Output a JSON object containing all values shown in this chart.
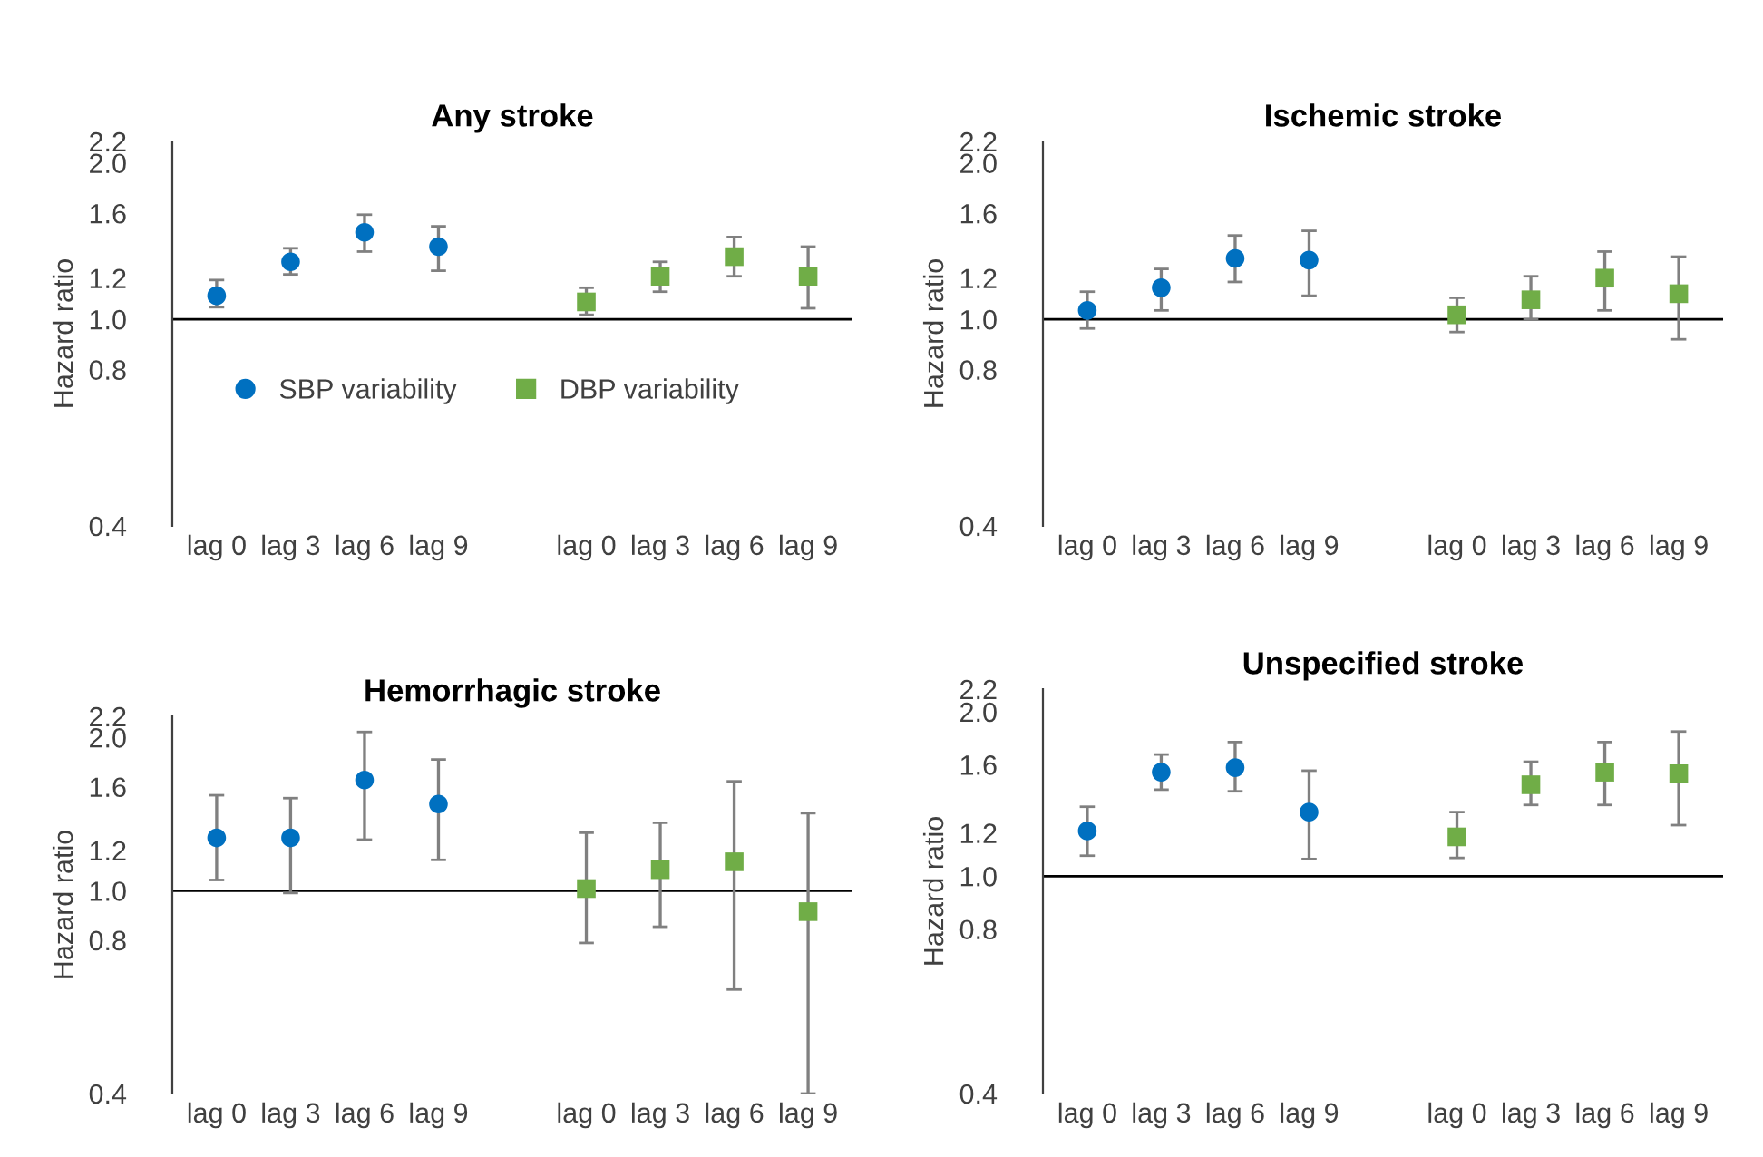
{
  "chart_data": [
    {
      "type": "scatter",
      "title": "Any stroke",
      "ylabel": "Hazard ratio",
      "log": true,
      "ylim": [
        0.4,
        2.2
      ],
      "yticks": [
        {
          "value": 0.4,
          "label": "0.4"
        },
        {
          "value": 0.8,
          "label": "0.8"
        },
        {
          "value": 1.0,
          "label": "1.0"
        },
        {
          "value": 1.2,
          "label": "1.2"
        },
        {
          "value": 1.6,
          "label": "1.6"
        },
        {
          "value": 2.0,
          "label": "2.0"
        },
        {
          "value": 2.2,
          "label": "2.2"
        }
      ],
      "categories": [
        "lag 0",
        "lag 3",
        "lag 6",
        "lag 9",
        null,
        "lag 0",
        "lag 3",
        "lag 6",
        "lag 9"
      ],
      "ref_lines": [
        {
          "axis": "y",
          "value": 1.0,
          "color": "#000000"
        }
      ],
      "grid": false,
      "legend": "center",
      "series": [
        {
          "name": "SBP variability",
          "color": "#0070c0",
          "marker": "circle",
          "values": [
            1.11,
            1.29,
            1.47,
            1.38,
            null,
            null,
            null,
            null,
            null
          ],
          "errors": [
            [
              1.055,
              1.19
            ],
            [
              1.22,
              1.37
            ],
            [
              1.35,
              1.59
            ],
            [
              1.24,
              1.51
            ],
            null,
            null,
            null,
            null,
            null
          ]
        },
        {
          "name": "DBP variability",
          "color": "#70ad47",
          "marker": "square",
          "values": [
            null,
            null,
            null,
            null,
            null,
            1.08,
            1.21,
            1.32,
            1.21
          ],
          "errors": [
            null,
            null,
            null,
            null,
            null,
            [
              1.02,
              1.15
            ],
            [
              1.13,
              1.29
            ],
            [
              1.21,
              1.44
            ],
            [
              1.05,
              1.38
            ]
          ]
        }
      ]
    },
    {
      "type": "scatter",
      "title": "Ischemic stroke",
      "ylabel": "Hazard ratio",
      "log": true,
      "ylim": [
        0.4,
        2.2
      ],
      "yticks": [
        {
          "value": 0.4,
          "label": "0.4"
        },
        {
          "value": 0.8,
          "label": "0.8"
        },
        {
          "value": 1.0,
          "label": "1.0"
        },
        {
          "value": 1.2,
          "label": "1.2"
        },
        {
          "value": 1.6,
          "label": "1.6"
        },
        {
          "value": 2.0,
          "label": "2.0"
        },
        {
          "value": 2.2,
          "label": "2.2"
        }
      ],
      "categories": [
        "lag 0",
        "lag 3",
        "lag 6",
        "lag 9",
        null,
        "lag 0",
        "lag 3",
        "lag 6",
        "lag 9"
      ],
      "ref_lines": [
        {
          "axis": "y",
          "value": 1.0,
          "color": "#000000"
        }
      ],
      "grid": false,
      "series": [
        {
          "color": "#0070c0",
          "marker": "circle",
          "values": [
            1.04,
            1.15,
            1.31,
            1.3,
            null,
            null,
            null,
            null,
            null
          ],
          "errors": [
            [
              0.96,
              1.13
            ],
            [
              1.04,
              1.25
            ],
            [
              1.18,
              1.45
            ],
            [
              1.11,
              1.48
            ],
            null,
            null,
            null,
            null,
            null
          ]
        },
        {
          "color": "#70ad47",
          "marker": "square",
          "values": [
            null,
            null,
            null,
            null,
            null,
            1.02,
            1.09,
            1.2,
            1.12
          ],
          "errors": [
            null,
            null,
            null,
            null,
            null,
            [
              0.945,
              1.1
            ],
            [
              1.0,
              1.21
            ],
            [
              1.04,
              1.35
            ],
            [
              0.915,
              1.32
            ]
          ]
        }
      ]
    },
    {
      "type": "scatter",
      "title": "Hemorrhagic stroke",
      "ylabel": "Hazard ratio",
      "log": true,
      "ylim": [
        0.4,
        2.2
      ],
      "yticks": [
        {
          "value": 0.4,
          "label": "0.4"
        },
        {
          "value": 0.8,
          "label": "0.8"
        },
        {
          "value": 1.0,
          "label": "1.0"
        },
        {
          "value": 1.2,
          "label": "1.2"
        },
        {
          "value": 1.6,
          "label": "1.6"
        },
        {
          "value": 2.0,
          "label": "2.0"
        },
        {
          "value": 2.2,
          "label": "2.2"
        }
      ],
      "categories": [
        "lag 0",
        "lag 3",
        "lag 6",
        "lag 9",
        null,
        "lag 0",
        "lag 3",
        "lag 6",
        "lag 9"
      ],
      "ref_lines": [
        {
          "axis": "y",
          "value": 1.0,
          "color": "#000000"
        }
      ],
      "grid": false,
      "series": [
        {
          "color": "#0070c0",
          "marker": "circle",
          "values": [
            1.27,
            1.27,
            1.65,
            1.48,
            null,
            null,
            null,
            null,
            null
          ],
          "errors": [
            [
              1.05,
              1.54
            ],
            [
              0.99,
              1.52
            ],
            [
              1.26,
              2.05
            ],
            [
              1.15,
              1.81
            ],
            null,
            null,
            null,
            null,
            null
          ]
        },
        {
          "color": "#70ad47",
          "marker": "square",
          "values": [
            null,
            null,
            null,
            null,
            null,
            1.01,
            1.1,
            1.14,
            0.91
          ],
          "errors": [
            null,
            null,
            null,
            null,
            null,
            [
              0.79,
              1.3
            ],
            [
              0.85,
              1.36
            ],
            [
              0.64,
              1.64
            ],
            [
              0.4,
              1.42
            ]
          ]
        }
      ]
    },
    {
      "type": "scatter",
      "title": "Unspecified stroke",
      "ylabel": "Hazard ratio",
      "log": true,
      "ylim": [
        0.4,
        2.2
      ],
      "yticks": [
        {
          "value": 0.4,
          "label": "0.4"
        },
        {
          "value": 0.8,
          "label": "0.8"
        },
        {
          "value": 1.0,
          "label": "1.0"
        },
        {
          "value": 1.2,
          "label": "1.2"
        },
        {
          "value": 1.6,
          "label": "1.6"
        },
        {
          "value": 2.0,
          "label": "2.0"
        },
        {
          "value": 2.2,
          "label": "2.2"
        }
      ],
      "categories": [
        "lag 0",
        "lag 3",
        "lag 6",
        "lag 9",
        null,
        "lag 0",
        "lag 3",
        "lag 6",
        "lag 9"
      ],
      "ref_lines": [
        {
          "axis": "y",
          "value": 1.0,
          "color": "#000000"
        }
      ],
      "grid": false,
      "series": [
        {
          "color": "#0070c0",
          "marker": "circle",
          "values": [
            1.21,
            1.55,
            1.58,
            1.31,
            null,
            null,
            null,
            null,
            null
          ],
          "errors": [
            [
              1.09,
              1.34
            ],
            [
              1.44,
              1.67
            ],
            [
              1.43,
              1.76
            ],
            [
              1.075,
              1.56
            ],
            null,
            null,
            null,
            null,
            null
          ]
        },
        {
          "color": "#70ad47",
          "marker": "square",
          "values": [
            null,
            null,
            null,
            null,
            null,
            1.18,
            1.47,
            1.55,
            1.54
          ],
          "errors": [
            null,
            null,
            null,
            null,
            null,
            [
              1.08,
              1.31
            ],
            [
              1.35,
              1.62
            ],
            [
              1.35,
              1.76
            ],
            [
              1.24,
              1.84
            ]
          ]
        }
      ]
    }
  ]
}
